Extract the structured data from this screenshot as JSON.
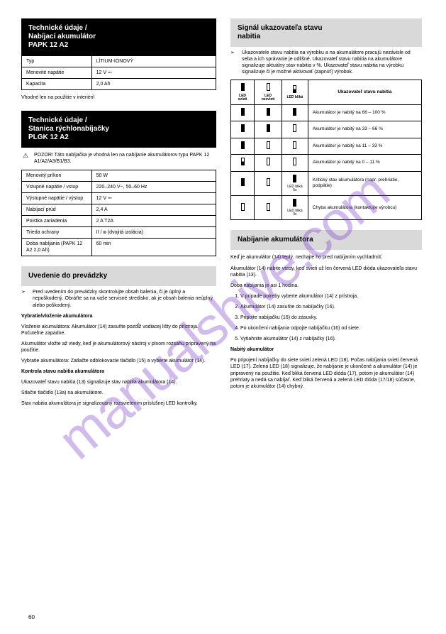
{
  "watermark": "manualshive.com",
  "pageNumber": "60",
  "left": {
    "header1": {
      "line1": "Technické údaje /",
      "line2": "Nabíjací akumulátor",
      "line3": "PAPK 12 A2"
    },
    "specTable": {
      "rows": [
        [
          "Typ",
          "LÍTIUM-IÓNOVÝ"
        ],
        [
          "Menovité napätie",
          "12 V ⎓"
        ],
        [
          "Kapacita",
          "2,0 Ah"
        ]
      ]
    },
    "note1": "Vhodné len na použitie v interiéri!",
    "header2": {
      "line1": "Technické údaje /",
      "line2": "Stanica rýchlonabíjačky",
      "line3": "PLGK 12 A2"
    },
    "warn1": "POZOR! Táto nabíjačka je vhodná len na nabíjanie akumulátorov typu PAPK 12 A1/A2/A3/B1/B3.",
    "chargerTable": {
      "rows": [
        [
          "Menovitý príkon",
          "50 W"
        ],
        [
          "Vstupné napätie / vstup",
          "220–240 V~, 50–60 Hz"
        ],
        [
          "Výstupné napätie / výstup",
          "12 V ⎓"
        ],
        [
          "Nabíjací prúd",
          "2,4 A"
        ],
        [
          "Poistka zariadenia",
          "2 A   T2A"
        ],
        [
          "Trieda ochrany",
          "II / ⧈ (dvojitá izolácia)"
        ],
        [
          "Doba nabíjania (PAPK 12 A2 2,0 Ah)",
          "60 min"
        ]
      ]
    },
    "header3": {
      "line1": "Uvedenie do prevádzky"
    },
    "bullet1_mark": "➢",
    "bullet1": "Pred uvedením do prevádzky skontrolujte obsah balenia, či je úplný a nepoškodený. Obráťte sa na vaše servisné stredisko, ak je obsah balenia neúplný alebo poškodený.",
    "subA_title": "Vybratie/vloženie akumulátora",
    "subA_p1": "Vloženie akumulátora: Akumulátor (14) zasuňte pozdĺž vodiacej lišty do prístroja. Počuteľne zapadne.",
    "subA_p2": "Akumulátor vložte až vtedy, keď je akumulátorový nástroj v plnom rozsahu pripravený na použitie.",
    "subA_p3": "Vybratie akumulátora: Zatlačte odblokovacie tlačidlo (15) a vyberte akumulátor (14).",
    "subB_title": "Kontrola stavu nabitia akumulátora",
    "subB_p1": "Ukazovateľ stavu nabitia (13) signalizuje stav nabitia akumulátora (14).",
    "subB_p2": "Stlačte tlačidlo (13a) na akumulátore.",
    "subB_p3": "Stav nabitia akumulátora je signalizovaný rozsvietením príslušnej LED kontrolky."
  },
  "right": {
    "header1": {
      "line1": "Signál ukazovateľa stavu",
      "line2": "nabitia"
    },
    "bullet1_mark": "➢",
    "bullet1": "Ukazovatele stavu nabitia na výrobku a na akumulátore pracujú nezávisle od seba a ich správanie je odlišné. Ukazovateľ stavu nabitia na akumulátore signalizuje aktuálny stav nabitia v %. Ukazovateľ stavu nabitia na výrobku signalizuje či je možné aktivovať (zapnúť) výrobok.",
    "chargeTable": {
      "header": [
        "LED1",
        "LED2",
        "LED3",
        "Ukazovateľ stavu nabitia"
      ],
      "headerIcons": [
        "full",
        "empty",
        "half"
      ],
      "headerCaption": [
        "LED svieti",
        "LED nesvieti",
        "LED bliká"
      ],
      "rows": [
        {
          "icons": [
            "full",
            "full",
            "full"
          ],
          "text": "Akumulátor je nabitý na 66 – 100 %"
        },
        {
          "icons": [
            "full",
            "full",
            "empty"
          ],
          "text": "Akumulátor je nabitý na 33 – 66 %"
        },
        {
          "icons": [
            "full",
            "empty",
            "empty"
          ],
          "text": "Akumulátor je nabitý na 11 – 33 %"
        },
        {
          "icons": [
            "half",
            "empty",
            "empty"
          ],
          "text": "Akumulátor je nabitý na 0 – 11 %"
        },
        {
          "icons": [
            "full",
            "empty",
            "full"
          ],
          "blinkNote": "LED bliká 5x",
          "text": "Kritický stav akumulátora (napr. prehriatie, podpätie)"
        },
        {
          "icons": [
            "empty",
            "empty",
            "full"
          ],
          "blinkNote": "LED bliká 3x",
          "text": "Chyba akumulátora (kontaktujte výrobcu)"
        }
      ]
    },
    "header2": {
      "line1": "Nabíjanie akumulátora"
    },
    "p1": "Keď je akumulátor (14) teplý, nechajte ho pred nabíjaním vychladnúť.",
    "p2": "Akumulátor (14) nabite vtedy, keď svieti už len červená LED dióda ukazovateľa stavu nabitia (13).",
    "p3": "Doba nabíjania je asi 1 hodina.",
    "ol": [
      "V prípade potreby vyberte akumulátor (14) z prístroja.",
      "Akumulátor (14) zasuňte do nabíjačky (16).",
      "Pripojte nabíjačku (16) do zásuvky.",
      "Po ukončení nabíjania odpojte nabíjačku (16) od siete.",
      "Vytiahnite akumulátor (14) z nabíjačky (16)."
    ],
    "subD_title": "Nabitý akumulátor",
    "subD_p": "Po pripojení nabíjačky do siete svieti zelená LED (18). Počas nabíjania svieti červená LED (17). Zelená LED (18) signalizuje, že nabíjanie je ukončené a akumulátor (14) je pripravený na použitie. Keď bliká červená LED dióda (17), potom je akumulátor (14) prehriaty a nedá sa nabíjať. Keď bliká červená a zelená LED dióda (17/18) súčasne, potom je akumulátor (14) chybný."
  }
}
